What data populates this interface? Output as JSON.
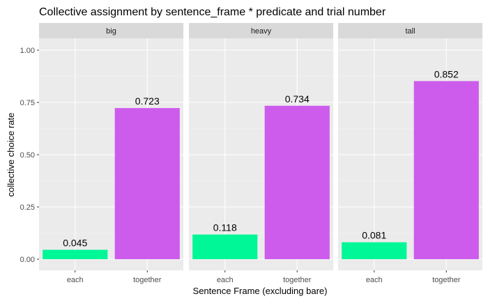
{
  "chart_data": {
    "type": "bar",
    "title": "Collective assignment by sentence_frame * predicate and trial number",
    "xlabel": "Sentence Frame (excluding bare)",
    "ylabel": "collective choice rate",
    "ylim": [
      0,
      1.06
    ],
    "yticks": [
      0,
      0.25,
      0.5,
      0.75,
      1.0
    ],
    "ytick_labels": [
      "0.00",
      "0.25",
      "0.50",
      "0.75",
      "1.00"
    ],
    "grid": true,
    "categories": [
      "each",
      "together"
    ],
    "colors": {
      "each": "#00f798",
      "together": "#cd5cec"
    },
    "panels": [
      {
        "facet": "big",
        "values": [
          0.045,
          0.723
        ],
        "labels": [
          "0.045",
          "0.723"
        ]
      },
      {
        "facet": "heavy",
        "values": [
          0.118,
          0.734
        ],
        "labels": [
          "0.118",
          "0.734"
        ]
      },
      {
        "facet": "tall",
        "values": [
          0.081,
          0.852
        ],
        "labels": [
          "0.081",
          "0.852"
        ]
      }
    ]
  }
}
